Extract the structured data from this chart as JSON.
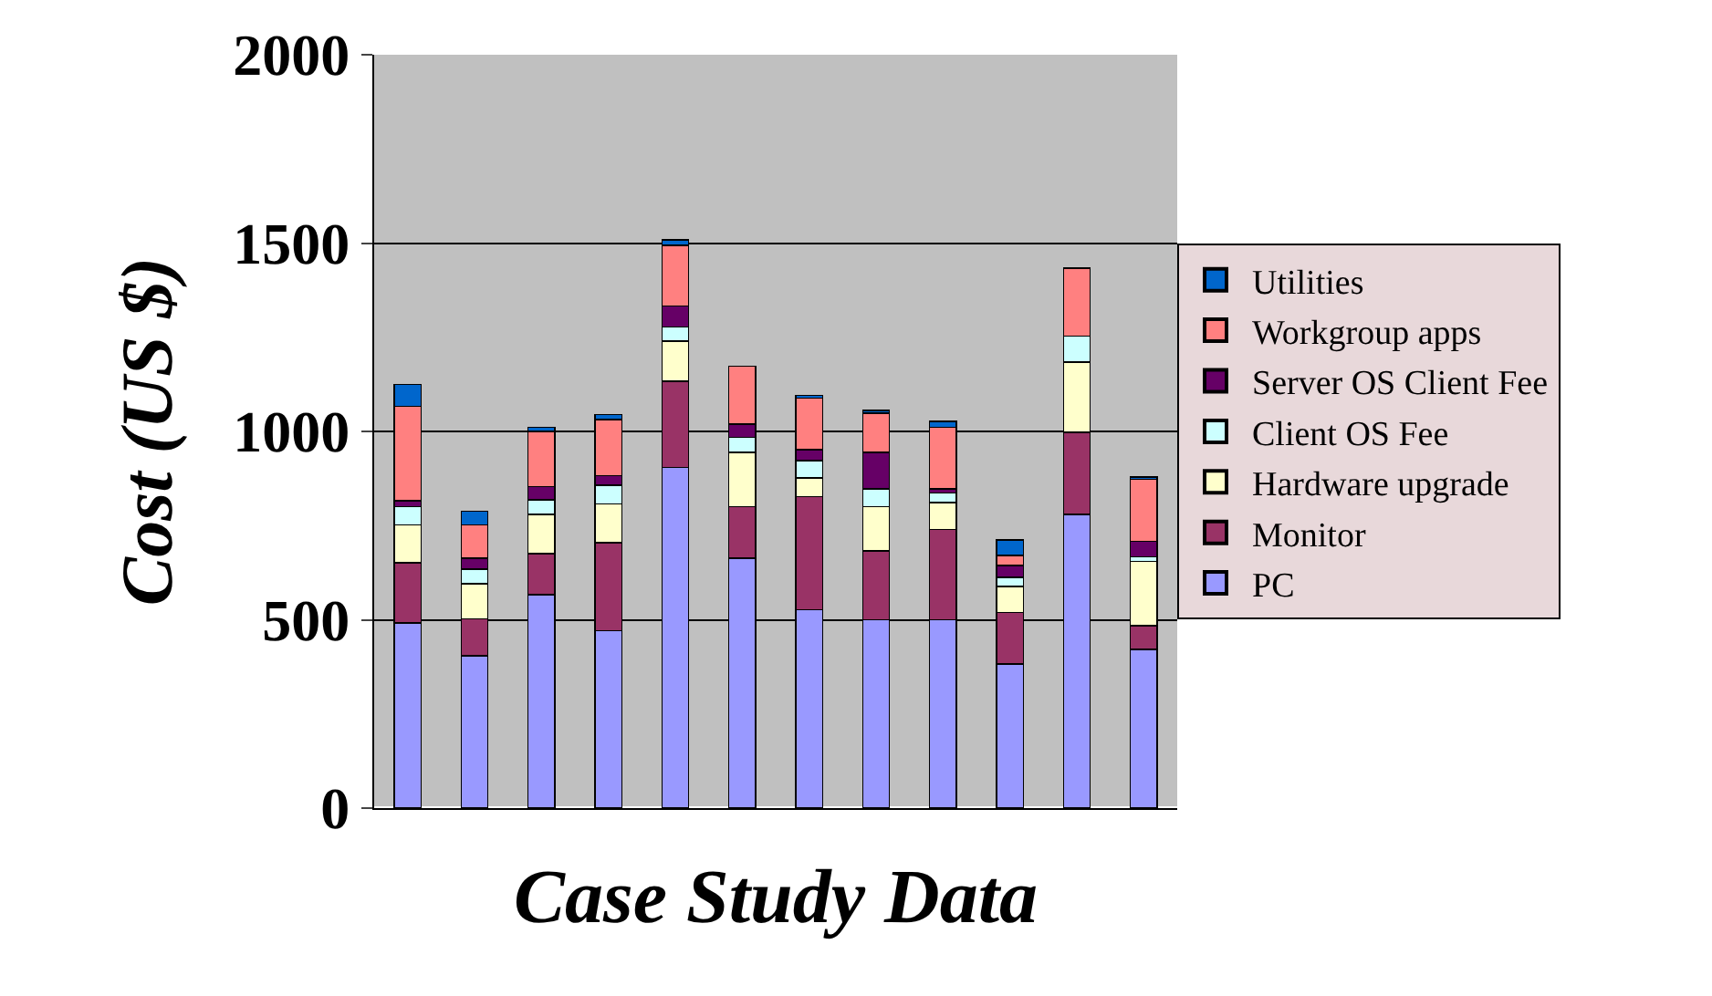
{
  "chart_data": {
    "type": "bar",
    "stacked": true,
    "xlabel": "Case Study Data",
    "ylabel": "Cost (US $)",
    "categories": [
      null,
      null,
      null,
      null,
      null,
      null,
      null,
      null,
      null,
      null,
      null,
      null
    ],
    "series": [
      {
        "name": "PC",
        "color": "#9999ff",
        "values": [
          492,
          405,
          567,
          471,
          904,
          663,
          527,
          500,
          500,
          383,
          779,
          421
        ]
      },
      {
        "name": "Monitor",
        "color": "#993366",
        "values": [
          160,
          97,
          108,
          233,
          229,
          137,
          300,
          183,
          240,
          136,
          219,
          63
        ]
      },
      {
        "name": "Hardware upgrade",
        "color": "#ffffcc",
        "values": [
          100,
          94,
          105,
          104,
          107,
          144,
          50,
          117,
          71,
          69,
          186,
          171
        ]
      },
      {
        "name": "Client OS Fee",
        "color": "#ccffff",
        "values": [
          48,
          39,
          39,
          49,
          37,
          40,
          46,
          48,
          26,
          24,
          69,
          12
        ]
      },
      {
        "name": "Server OS Client Fee",
        "color": "#660066",
        "values": [
          16,
          28,
          35,
          26,
          56,
          35,
          29,
          96,
          11,
          32,
          null,
          41
        ]
      },
      {
        "name": "Workgroup apps",
        "color": "#ff8080",
        "values": [
          251,
          89,
          146,
          149,
          161,
          154,
          136,
          104,
          163,
          27,
          180,
          165
        ]
      },
      {
        "name": "Utilities",
        "color": "#0066cc",
        "values": [
          58,
          36,
          11,
          13,
          14,
          null,
          8,
          8,
          16,
          41,
          null,
          6
        ]
      }
    ],
    "ylim": [
      0,
      2000
    ],
    "yticks": [
      0,
      500,
      1000,
      1500,
      2000
    ],
    "grid": "y",
    "legend": "right"
  }
}
